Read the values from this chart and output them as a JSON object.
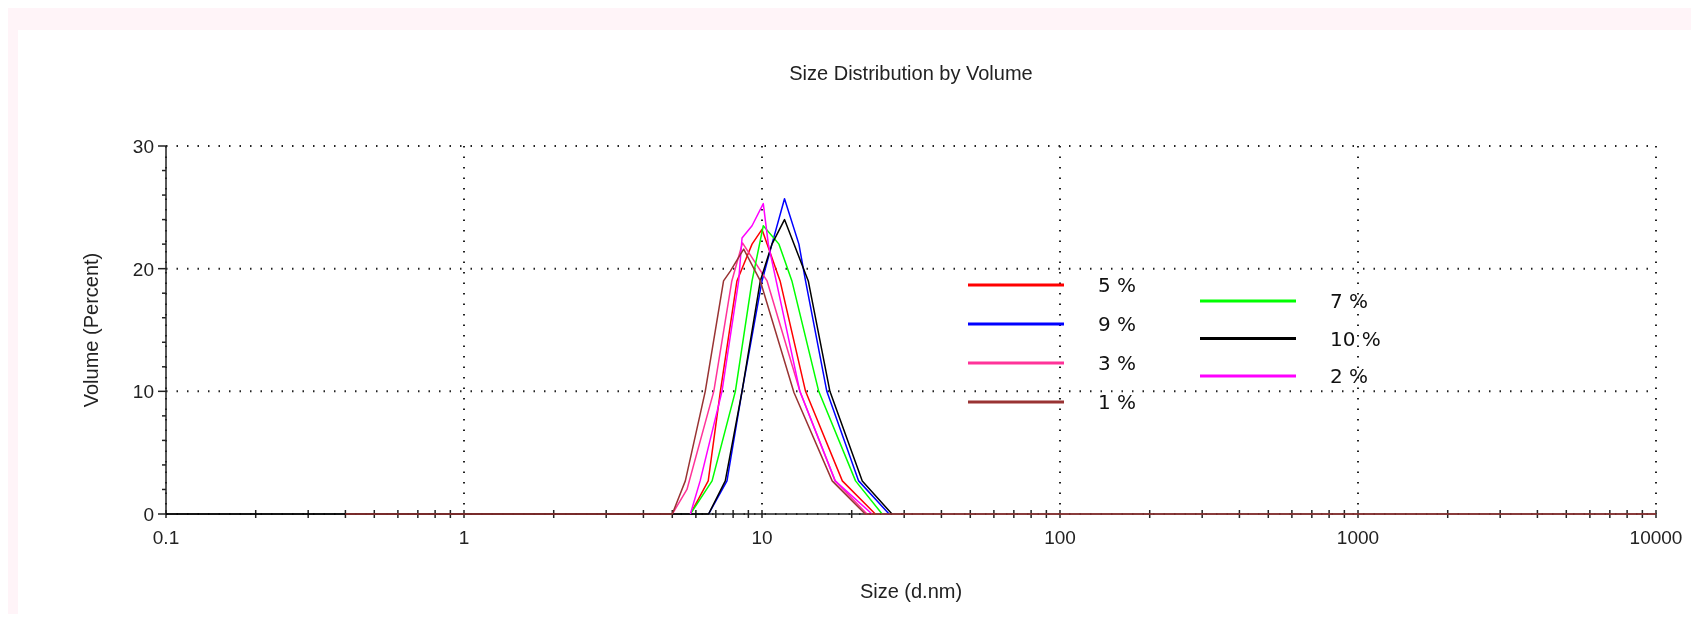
{
  "chart_data": {
    "type": "line",
    "title": "Size Distribution by Volume",
    "xlabel": "Size (d.nm)",
    "ylabel": "Volume (Percent)",
    "log": "x",
    "grid": true,
    "legend": "right",
    "marker": "none",
    "line_style": "solid",
    "xlim": [
      0.1,
      10000
    ],
    "xticks": [
      0.1,
      {
        "value": 0.2,
        "label": null
      },
      {
        "value": 0.3,
        "label": null
      },
      {
        "value": 0.4,
        "label": null
      },
      {
        "value": 0.5,
        "label": null
      },
      {
        "value": 0.6,
        "label": null
      },
      {
        "value": 0.7,
        "label": null
      },
      {
        "value": 0.8,
        "label": null
      },
      {
        "value": 0.9,
        "label": null
      },
      1,
      {
        "value": 2,
        "label": null
      },
      {
        "value": 3,
        "label": null
      },
      {
        "value": 4,
        "label": null
      },
      {
        "value": 5,
        "label": null
      },
      {
        "value": 6,
        "label": null
      },
      {
        "value": 7,
        "label": null
      },
      {
        "value": 8,
        "label": null
      },
      {
        "value": 9,
        "label": null
      },
      10,
      {
        "value": 20,
        "label": null
      },
      {
        "value": 30,
        "label": null
      },
      {
        "value": 40,
        "label": null
      },
      {
        "value": 50,
        "label": null
      },
      {
        "value": 60,
        "label": null
      },
      {
        "value": 70,
        "label": null
      },
      {
        "value": 80,
        "label": null
      },
      {
        "value": 90,
        "label": null
      },
      100,
      {
        "value": 200,
        "label": null
      },
      {
        "value": 300,
        "label": null
      },
      {
        "value": 400,
        "label": null
      },
      {
        "value": 500,
        "label": null
      },
      {
        "value": 600,
        "label": null
      },
      {
        "value": 700,
        "label": null
      },
      {
        "value": 800,
        "label": null
      },
      {
        "value": 900,
        "label": null
      },
      1000,
      {
        "value": 2000,
        "label": null
      },
      {
        "value": 3000,
        "label": null
      },
      {
        "value": 4000,
        "label": null
      },
      {
        "value": 5000,
        "label": null
      },
      {
        "value": 6000,
        "label": null
      },
      {
        "value": 7000,
        "label": null
      },
      {
        "value": 8000,
        "label": null
      },
      {
        "value": 9000,
        "label": null
      },
      10000
    ],
    "ylim": [
      0,
      30
    ],
    "yticks": [
      0,
      {
        "value": 2,
        "label": null
      },
      {
        "value": 4,
        "label": null
      },
      {
        "value": 6,
        "label": null
      },
      {
        "value": 8,
        "label": null
      },
      10,
      {
        "value": 12,
        "label": null
      },
      {
        "value": 14,
        "label": null
      },
      {
        "value": 16,
        "label": null
      },
      {
        "value": 18,
        "label": null
      },
      20,
      {
        "value": 22,
        "label": null
      },
      {
        "value": 24,
        "label": null
      },
      {
        "value": 26,
        "label": null
      },
      {
        "value": 28,
        "label": null
      },
      30
    ],
    "series": [
      {
        "name": "5 %",
        "color": "#ff0000",
        "x": [
          5.75,
          6.6,
          7.25,
          8.24,
          9.26,
          10.0,
          11.5,
          14.0,
          18.6,
          24
        ],
        "values": [
          0,
          2.7,
          10,
          19,
          22,
          23.2,
          19,
          10,
          2.7,
          0
        ]
      },
      {
        "name": "9 %",
        "color": "#0000ff",
        "x": [
          6.62,
          7.63,
          8.57,
          10,
          10.8,
          11.9,
          13.3,
          14.0,
          16.5,
          21.1,
          26.7
        ],
        "values": [
          0,
          2.7,
          10,
          19,
          22,
          25.7,
          22,
          19,
          10,
          2.7,
          0
        ]
      },
      {
        "name": "3 %",
        "color": "#ff3399",
        "x": [
          5.0,
          5.6,
          6.89,
          7.92,
          8.6,
          10.4,
          13.4,
          17.6,
          22.5
        ],
        "values": [
          0,
          2,
          10,
          19,
          22.1,
          19,
          10,
          2.7,
          0
        ]
      },
      {
        "name": "1 %",
        "color": "#993333",
        "x": [
          0.4,
          5.0,
          5.53,
          6.45,
          7.43,
          7.83,
          8.68,
          9.87,
          12.8,
          17.2,
          22.2,
          10000
        ],
        "values": [
          0,
          0,
          2.7,
          10,
          19,
          19.8,
          21.6,
          19,
          9.9,
          2.7,
          0,
          0
        ]
      },
      {
        "name": "7 %",
        "color": "#00ff00",
        "x": [
          5.75,
          6.8,
          8.14,
          9.26,
          10.1,
          11.4,
          12.6,
          15.5,
          20.6,
          25.3
        ],
        "values": [
          0,
          2.7,
          10,
          19,
          23.5,
          22,
          19,
          10,
          2.7,
          0
        ]
      },
      {
        "name": "10 %",
        "color": "#000000",
        "x": [
          0.1,
          6.62,
          7.53,
          8.57,
          9.87,
          10.8,
          11.9,
          14.3,
          16.9,
          21.7,
          27.3
        ],
        "values": [
          0,
          0,
          2.7,
          10,
          19,
          22,
          24.0,
          19,
          10,
          2.7,
          0
        ]
      },
      {
        "name": "2 %",
        "color": "#ff00ff",
        "x": [
          5.75,
          6.2,
          7.34,
          8.35,
          8.57,
          9.26,
          10.1,
          10.5,
          13.4,
          17.6,
          23.4
        ],
        "values": [
          0,
          2.7,
          10,
          19,
          22.5,
          23.5,
          25.3,
          22,
          10,
          2.7,
          0
        ]
      }
    ]
  }
}
